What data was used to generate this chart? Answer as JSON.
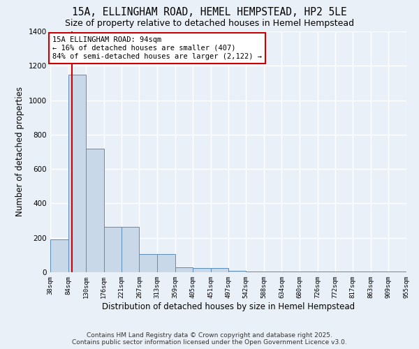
{
  "title_line1": "15A, ELLINGHAM ROAD, HEMEL HEMPSTEAD, HP2 5LE",
  "title_line2": "Size of property relative to detached houses in Hemel Hempstead",
  "xlabel": "Distribution of detached houses by size in Hemel Hempstead",
  "ylabel": "Number of detached properties",
  "bin_edges": [
    38,
    84,
    130,
    176,
    221,
    267,
    313,
    359,
    405,
    451,
    497,
    542,
    588,
    634,
    680,
    726,
    772,
    817,
    863,
    909,
    955
  ],
  "bar_heights": [
    190,
    1150,
    720,
    265,
    265,
    105,
    105,
    30,
    25,
    25,
    10,
    5,
    5,
    5,
    5,
    5,
    5,
    5,
    5,
    5
  ],
  "bar_color": "#c8d8e8",
  "bar_edge_color": "#5b8db8",
  "background_color": "#eaf0f8",
  "grid_color": "#ffffff",
  "ylim": [
    0,
    1400
  ],
  "xlim": [
    38,
    955
  ],
  "property_size": 94,
  "annotation_title": "15A ELLINGHAM ROAD: 94sqm",
  "annotation_line1": "← 16% of detached houses are smaller (407)",
  "annotation_line2": "84% of semi-detached houses are larger (2,122) →",
  "annotation_box_color": "#ffffff",
  "annotation_border_color": "#cc0000",
  "vline_color": "#cc0000",
  "footer_line1": "Contains HM Land Registry data © Crown copyright and database right 2025.",
  "footer_line2": "Contains public sector information licensed under the Open Government Licence v3.0.",
  "title_fontsize": 10.5,
  "subtitle_fontsize": 9,
  "axis_label_fontsize": 8.5,
  "tick_fontsize": 6.5,
  "annotation_fontsize": 7.5,
  "footer_fontsize": 6.5,
  "yticks": [
    0,
    200,
    400,
    600,
    800,
    1000,
    1200,
    1400
  ]
}
